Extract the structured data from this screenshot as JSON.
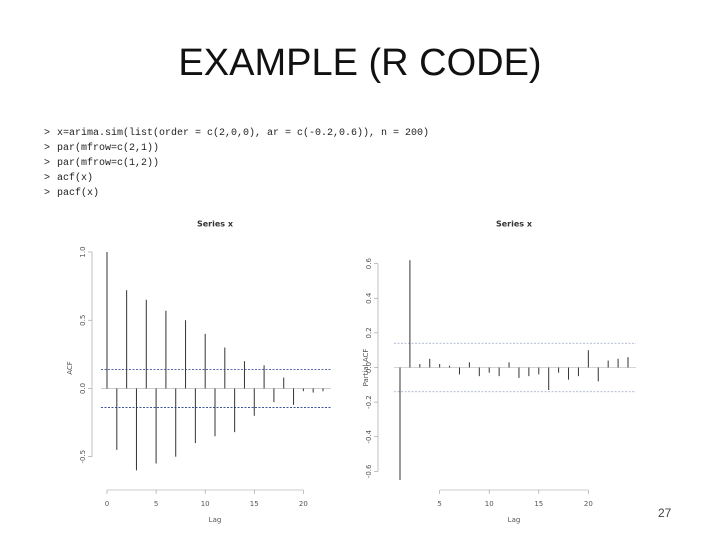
{
  "slide": {
    "title": "EXAMPLE (R CODE)",
    "code": [
      {
        "prompt": ">",
        "text": "x=arima.sim(list(order = c(2,0,0), ar = c(-0.2,0.6)), n = 200)"
      },
      {
        "prompt": ">",
        "text": "par(mfrow=c(2,1))"
      },
      {
        "prompt": ">",
        "text": "par(mfrow=c(1,2))"
      },
      {
        "prompt": ">",
        "text": "acf(x)"
      },
      {
        "prompt": ">",
        "text": "pacf(x)"
      }
    ],
    "page_number": "27"
  },
  "chart_data": [
    {
      "type": "bar",
      "title": "Series x",
      "x_label": "Lag",
      "y_label": "ACF",
      "x": [
        0,
        1,
        2,
        3,
        4,
        5,
        6,
        7,
        8,
        9,
        10,
        11,
        12,
        13,
        14,
        15,
        16,
        17,
        18,
        19,
        20,
        21,
        22
      ],
      "values": [
        1.0,
        -0.45,
        0.72,
        -0.6,
        0.65,
        -0.55,
        0.57,
        -0.5,
        0.5,
        -0.4,
        0.4,
        -0.35,
        0.3,
        -0.32,
        0.2,
        -0.2,
        0.17,
        -0.1,
        0.08,
        -0.12,
        -0.02,
        -0.03,
        -0.02
      ],
      "color": "#333333",
      "conf_bounds": [
        -0.14,
        0.14
      ],
      "conf_color": "#1f3a8a",
      "xlim": [
        0,
        22
      ],
      "xticks": [
        0,
        5,
        10,
        15,
        20
      ],
      "ylim": [
        -0.7,
        1.0
      ],
      "yticks": [
        {
          "value": 1.0,
          "label": "1.0"
        },
        0.5,
        {
          "value": 0.0,
          "label": "0.0"
        },
        -0.5
      ]
    },
    {
      "type": "bar",
      "title": "Series x",
      "x_label": "Lag",
      "y_label": "Partial ACF",
      "x": [
        1,
        2,
        3,
        4,
        5,
        6,
        7,
        8,
        9,
        10,
        11,
        12,
        13,
        14,
        15,
        16,
        17,
        18,
        19,
        20,
        21,
        22,
        23,
        24
      ],
      "values": [
        -0.65,
        0.62,
        0.02,
        0.05,
        0.02,
        0.01,
        -0.04,
        0.03,
        -0.05,
        -0.03,
        -0.05,
        0.03,
        -0.06,
        -0.05,
        -0.04,
        -0.13,
        -0.03,
        -0.07,
        -0.05,
        0.1,
        -0.08,
        0.04,
        0.05,
        0.06
      ],
      "color": "#333333",
      "conf_bounds": [
        -0.14,
        0.14
      ],
      "conf_color": "#9aa6c8",
      "xlim": [
        1,
        24
      ],
      "xticks": [
        5,
        10,
        15,
        20
      ],
      "ylim": [
        -0.65,
        0.65
      ],
      "yticks": [
        0.6,
        0.4,
        0.2,
        {
          "value": 0.0,
          "label": "0.0"
        },
        -0.2,
        -0.4,
        -0.6
      ]
    }
  ]
}
